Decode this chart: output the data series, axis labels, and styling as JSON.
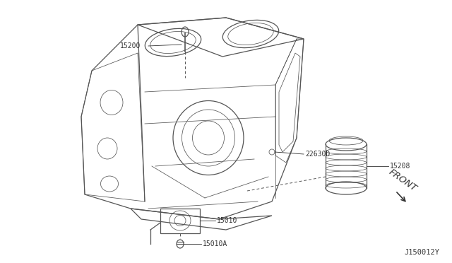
{
  "bg_color": "#ffffff",
  "line_color": "#555555",
  "text_color": "#333333",
  "watermark": "J150012Y",
  "label_15200": "15200",
  "label_22630D": "22630D",
  "label_15010": "15010",
  "label_15208": "15208",
  "label_15010A": "15010A",
  "front_label": "FRONT",
  "font_size": 7.0,
  "watermark_size": 7.5
}
